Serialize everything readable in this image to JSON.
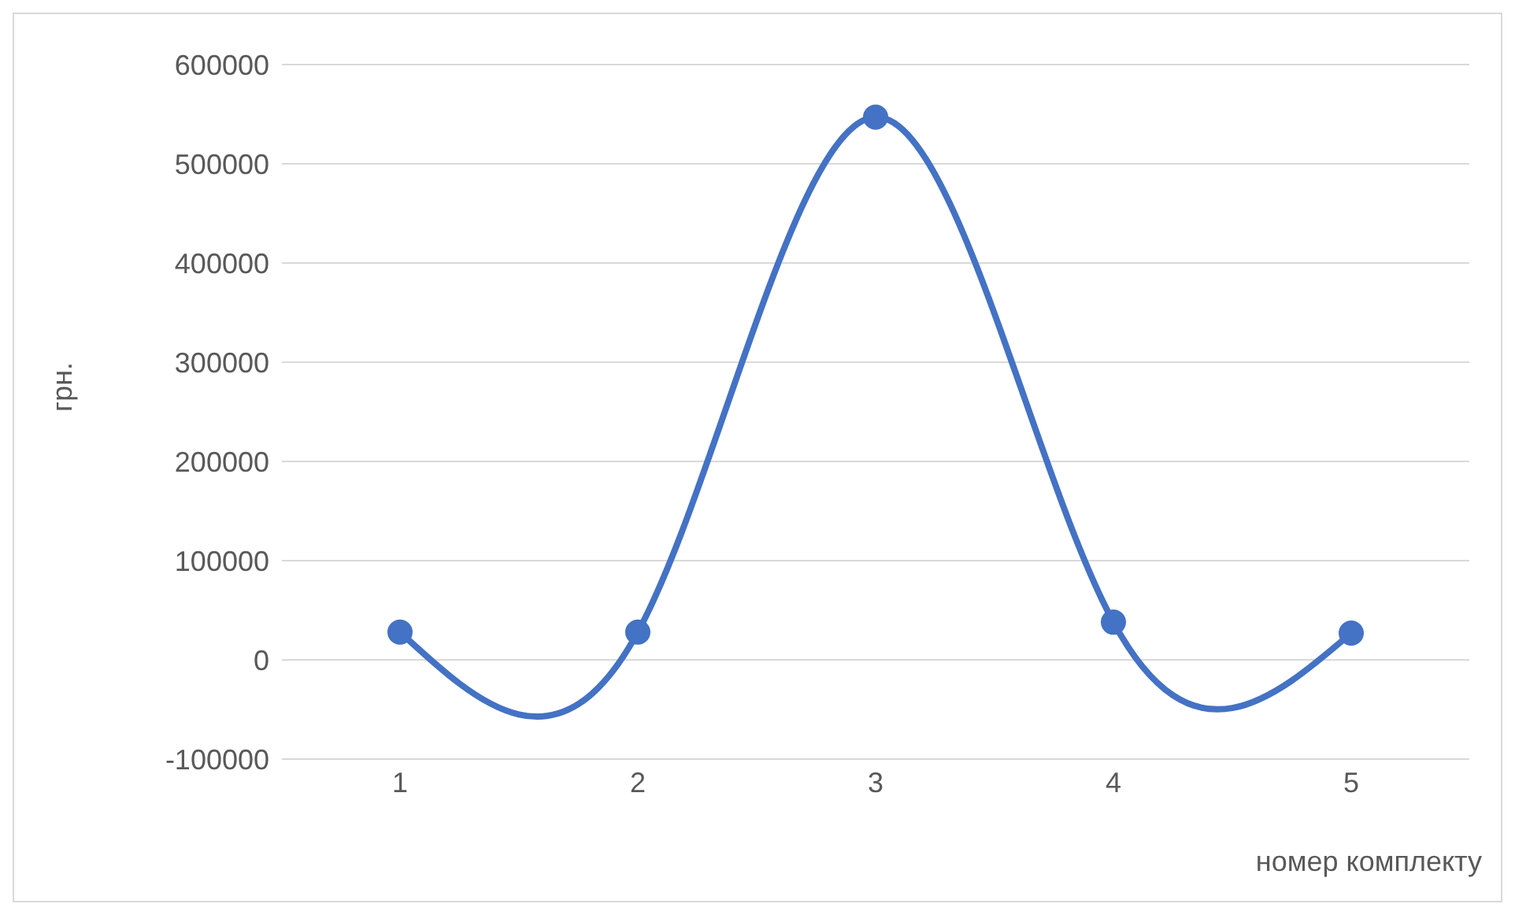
{
  "chart_data": {
    "type": "line",
    "xlabel": "номер комплекту",
    "ylabel": "грн.",
    "categories": [
      "1",
      "2",
      "3",
      "4",
      "5"
    ],
    "series": [
      {
        "color": "#4472c4",
        "values": [
          28000,
          28000,
          547000,
          38000,
          27000
        ]
      }
    ],
    "ylim": [
      -100000,
      600000
    ],
    "yticks": [
      -100000,
      0,
      100000,
      200000,
      300000,
      400000,
      500000,
      600000
    ],
    "grid": "y",
    "marker": "circle"
  }
}
